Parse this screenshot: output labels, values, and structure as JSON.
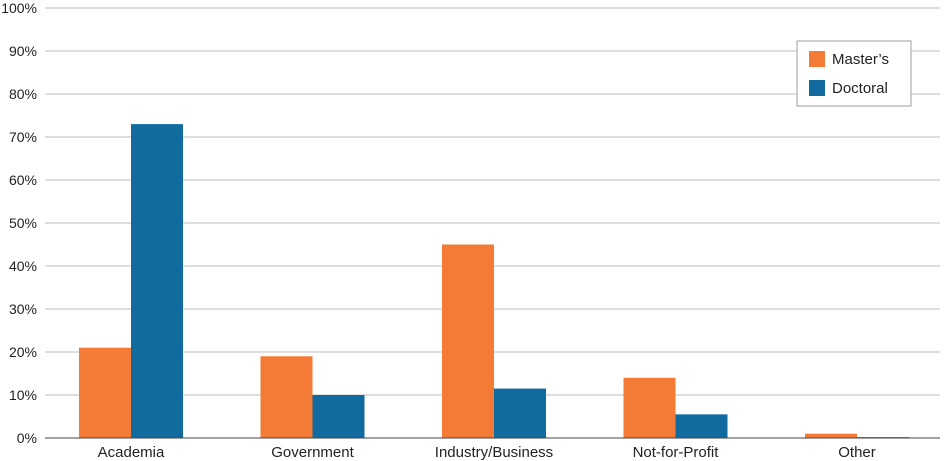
{
  "colors": {
    "masters": "#F47B35",
    "doctoral": "#116B9E",
    "grid": "#BDBDBD",
    "axis": "#444444"
  },
  "chart_data": {
    "type": "bar",
    "categories": [
      "Academia",
      "Government",
      "Industry/Business",
      "Not-for-Profit",
      "Other"
    ],
    "series": [
      {
        "name": "Master’s",
        "values": [
          21,
          19,
          45,
          14,
          1
        ]
      },
      {
        "name": "Doctoral",
        "values": [
          73,
          10,
          11.5,
          5.5,
          0.2
        ]
      }
    ],
    "y_ticks": [
      "0%",
      "10%",
      "20%",
      "30%",
      "40%",
      "50%",
      "60%",
      "70%",
      "80%",
      "90%",
      "100%"
    ],
    "ylim": [
      0,
      100
    ],
    "grid": true,
    "legend_position": "top-right"
  }
}
